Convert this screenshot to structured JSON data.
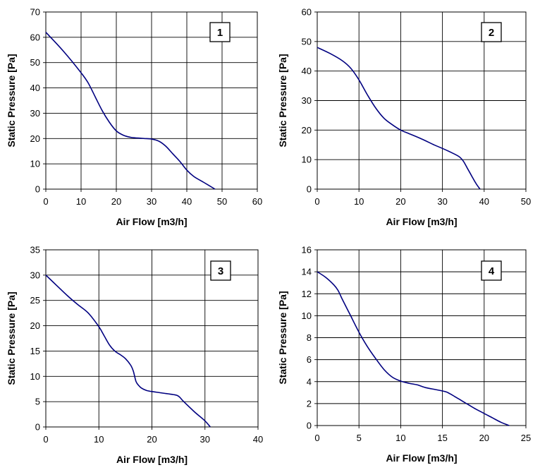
{
  "colors": {
    "curve": "#000080",
    "grid": "#000000",
    "background": "#ffffff"
  },
  "chart_data": [
    {
      "type": "line",
      "badge": "1",
      "xlabel": "Air Flow [m3/h]",
      "ylabel": "Static Pressure [Pa]",
      "xlim": [
        0,
        60
      ],
      "ylim": [
        0,
        70
      ],
      "xticks": [
        0,
        10,
        20,
        30,
        40,
        50,
        60
      ],
      "yticks": [
        0,
        10,
        20,
        30,
        40,
        50,
        60,
        70
      ],
      "grid": true,
      "x": [
        0,
        5,
        10,
        12,
        14,
        16,
        18,
        20,
        22,
        24,
        26,
        28,
        30,
        32,
        34,
        36,
        38,
        40,
        42,
        45,
        48
      ],
      "y": [
        62,
        54.5,
        46,
        42,
        36.5,
        31,
        26.5,
        23,
        21.3,
        20.5,
        20.2,
        20,
        19.8,
        19,
        17,
        14,
        11,
        7.5,
        5,
        2.5,
        0
      ]
    },
    {
      "type": "line",
      "badge": "2",
      "xlabel": "Air Flow [m3/h]",
      "ylabel": "Static Pressure [Pa]",
      "xlim": [
        0,
        50
      ],
      "ylim": [
        0,
        60
      ],
      "xticks": [
        0,
        10,
        20,
        30,
        40,
        50
      ],
      "yticks": [
        0,
        10,
        20,
        30,
        40,
        50,
        60
      ],
      "grid": true,
      "x": [
        0,
        3,
        6,
        8,
        10,
        12,
        14,
        16,
        18,
        20,
        22,
        25,
        28,
        30,
        32,
        34,
        35,
        36,
        37,
        38,
        39
      ],
      "y": [
        48,
        46,
        43.5,
        41,
        37,
        32,
        27.5,
        24,
        21.8,
        20,
        18.8,
        17,
        15,
        13.8,
        12.5,
        11,
        9.5,
        7,
        4.5,
        2,
        0
      ]
    },
    {
      "type": "line",
      "badge": "3",
      "xlabel": "Air Flow [m3/h]",
      "ylabel": "Static Pressure [Pa]",
      "xlim": [
        0,
        40
      ],
      "ylim": [
        0,
        35
      ],
      "xticks": [
        0,
        10,
        20,
        30,
        40
      ],
      "yticks": [
        0,
        5,
        10,
        15,
        20,
        25,
        30,
        35
      ],
      "grid": true,
      "x": [
        0,
        2,
        4,
        6,
        8,
        10,
        11,
        12,
        13,
        14,
        15,
        16,
        16.5,
        17,
        17.5,
        18,
        19,
        20,
        22,
        24,
        25,
        26,
        28,
        30,
        31
      ],
      "y": [
        30,
        28,
        26,
        24.2,
        22.5,
        19.8,
        18,
        16.2,
        15,
        14.3,
        13.5,
        12.2,
        11,
        9,
        8.2,
        7.7,
        7.2,
        7,
        6.7,
        6.4,
        6.1,
        5,
        3,
        1.2,
        0
      ]
    },
    {
      "type": "line",
      "badge": "4",
      "xlabel": "Air Flow [m3/h]",
      "ylabel": "Static Pressure [Pa]",
      "xlim": [
        0,
        25
      ],
      "ylim": [
        0,
        16
      ],
      "xticks": [
        0,
        5,
        10,
        15,
        20,
        25
      ],
      "yticks": [
        0,
        2,
        4,
        6,
        8,
        10,
        12,
        14,
        16
      ],
      "grid": true,
      "x": [
        0,
        1,
        2,
        2.5,
        3,
        4,
        5,
        6,
        7,
        8,
        9,
        10,
        11,
        12,
        13,
        14,
        15,
        15.5,
        16,
        17,
        18,
        19,
        20,
        21,
        22,
        23
      ],
      "y": [
        14,
        13.5,
        12.8,
        12.3,
        11.5,
        10,
        8.5,
        7.2,
        6.1,
        5.1,
        4.4,
        4.05,
        3.85,
        3.7,
        3.45,
        3.3,
        3.15,
        3.05,
        2.85,
        2.4,
        1.95,
        1.5,
        1.1,
        0.7,
        0.3,
        0
      ]
    }
  ]
}
